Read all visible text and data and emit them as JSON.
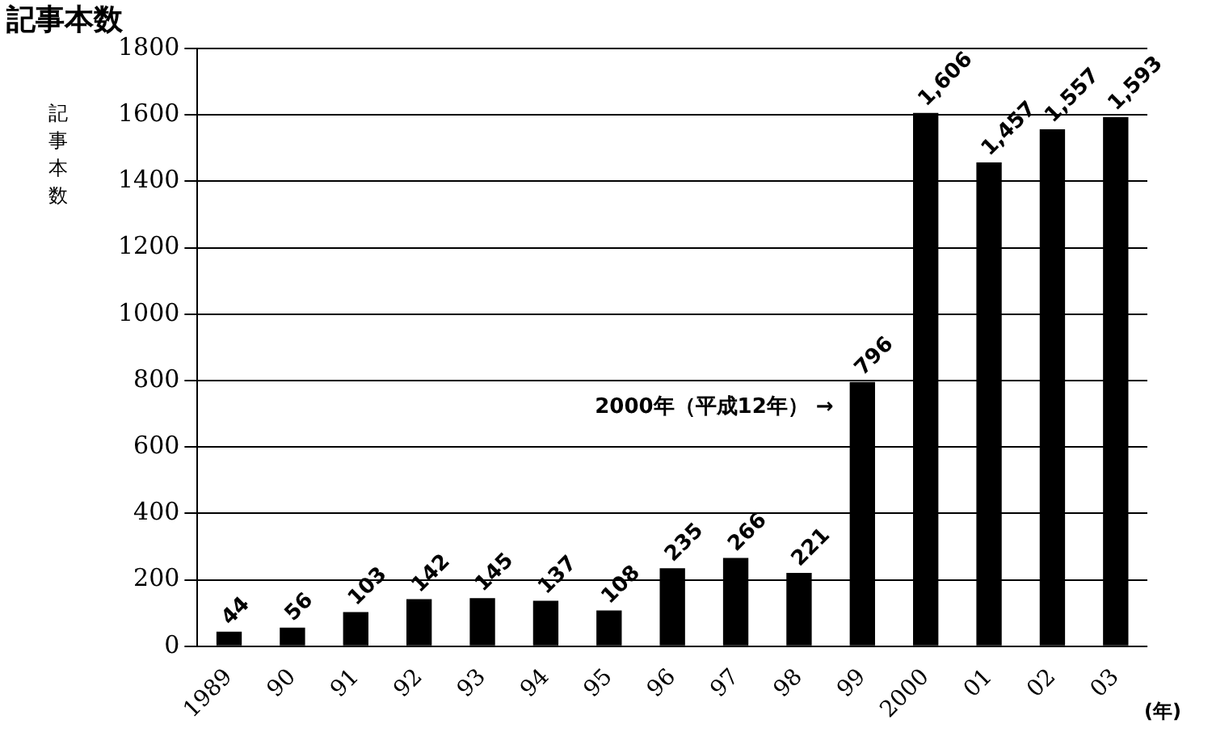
{
  "chart_data": {
    "type": "bar",
    "title": "記事本数",
    "ylabel": "記事本数",
    "xlabel": "(年)",
    "categories": [
      "1989",
      "90",
      "91",
      "92",
      "93",
      "94",
      "95",
      "96",
      "97",
      "98",
      "99",
      "2000",
      "01",
      "02",
      "03"
    ],
    "values": [
      44,
      56,
      103,
      142,
      145,
      137,
      108,
      235,
      266,
      221,
      796,
      1606,
      1457,
      1557,
      1593
    ],
    "value_labels": [
      "44",
      "56",
      "103",
      "142",
      "145",
      "137",
      "108",
      "235",
      "266",
      "221",
      "796",
      "1,606",
      "1,457",
      "1,557",
      "1,593"
    ],
    "color": "#000000",
    "ylim": [
      0,
      1800
    ],
    "yticks": [
      0,
      200,
      400,
      600,
      800,
      1000,
      1200,
      1400,
      1600,
      1800
    ],
    "grid": "y",
    "legend": false,
    "annotations": [
      "2000年（平成12年） →"
    ]
  }
}
